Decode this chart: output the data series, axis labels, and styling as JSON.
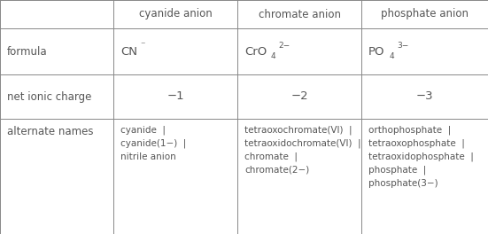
{
  "col_headers": [
    "",
    "cyanide anion",
    "chromate anion",
    "phosphate anion"
  ],
  "row_labels": [
    "formula",
    "net ionic charge",
    "alternate names"
  ],
  "charges": [
    "−1",
    "−2",
    "−3"
  ],
  "alt_col1": "cyanide  |\ncyanide(1−)  |\nnitrile anion",
  "alt_col2": "tetraoxochromate(VI)  |\ntetraoxidochromate(VI)  |\nchromate  |\nchromate(2−)",
  "alt_col3": "orthophosphate  |\ntetraoxophosphate  |\ntetraoxidophosphate  |\nphosphate  |\nphosphate(3−)",
  "bg_color": "#ffffff",
  "border_color": "#888888",
  "text_color": "#555555",
  "font_size": 8.5
}
